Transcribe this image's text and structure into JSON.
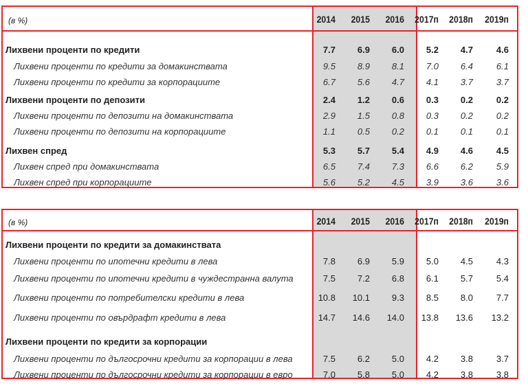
{
  "table1": {
    "unit": "(в %)",
    "years": [
      "2014",
      "2015",
      "2016",
      "2017п",
      "2018п",
      "2019п"
    ],
    "rows": [
      {
        "label": "Лихвени проценти по кредити",
        "style": "bold",
        "values": [
          "7.7",
          "6.9",
          "6.0",
          "5.2",
          "4.7",
          "4.6"
        ]
      },
      {
        "label": "Лихвени проценти по кредити за домакинствата",
        "style": "it",
        "values": [
          "9.5",
          "8.9",
          "8.1",
          "7.0",
          "6.4",
          "6.1"
        ]
      },
      {
        "label": "Лихвени проценти по кредити за корпорациите",
        "style": "it",
        "values": [
          "6.7",
          "5.6",
          "4.7",
          "4.1",
          "3.7",
          "3.7"
        ]
      },
      {
        "label": "Лихвени проценти по депозити",
        "style": "bold",
        "values": [
          "2.4",
          "1.2",
          "0.6",
          "0.3",
          "0.2",
          "0.2"
        ]
      },
      {
        "label": "Лихвени проценти по депозити на домакинствата",
        "style": "it",
        "values": [
          "2.9",
          "1.5",
          "0.8",
          "0.3",
          "0.2",
          "0.2"
        ]
      },
      {
        "label": "Лихвени проценти по депозити на корпорациите",
        "style": "it",
        "values": [
          "1.1",
          "0.5",
          "0.2",
          "0.1",
          "0.1",
          "0.1"
        ]
      },
      {
        "label": "Лихвен спред",
        "style": "bold",
        "values": [
          "5.3",
          "5.7",
          "5.4",
          "4.9",
          "4.6",
          "4.5"
        ]
      },
      {
        "label": "Лихвен спред при домакинствата",
        "style": "it",
        "values": [
          "6.5",
          "7.4",
          "7.3",
          "6.6",
          "6.2",
          "5.9"
        ]
      },
      {
        "label": "Лихвен спред при корпорациите",
        "style": "it",
        "values": [
          "5.6",
          "5.2",
          "4.5",
          "3.9",
          "3.6",
          "3.6"
        ]
      }
    ]
  },
  "table2": {
    "unit": "(в %)",
    "years": [
      "2014",
      "2015",
      "2016",
      "2017п",
      "2018п",
      "2019п"
    ],
    "rows": [
      {
        "label": "Лихвени проценти по кредити за домакинствата",
        "style": "bold",
        "values": []
      },
      {
        "label": "Лихвени проценти по ипотечни кредити в лева",
        "style": "it",
        "values": [
          "7.8",
          "6.9",
          "5.9",
          "5.0",
          "4.5",
          "4.3"
        ]
      },
      {
        "label": "Лихвени проценти по ипотечни кредити в чуждестранна валута",
        "style": "it",
        "values": [
          "7.5",
          "7.2",
          "6.8",
          "6.1",
          "5.7",
          "5.4"
        ]
      },
      {
        "label": "Лихвени проценти по потребителски кредити в лева",
        "style": "it",
        "values": [
          "10.8",
          "10.1",
          "9.3",
          "8.5",
          "8.0",
          "7.7"
        ]
      },
      {
        "label": "Лихвени проценти по овърдрафт кредити в лева",
        "style": "it",
        "values": [
          "14.7",
          "14.6",
          "14.0",
          "13.8",
          "13.6",
          "13.2"
        ]
      },
      {
        "label": "Лихвени проценти по кредити за корпорации",
        "style": "bold",
        "values": []
      },
      {
        "label": "Лихвени проценти по дългосрочни кредити за корпорации в лева",
        "style": "it",
        "values": [
          "7.5",
          "6.2",
          "5.0",
          "4.2",
          "3.8",
          "3.7"
        ]
      },
      {
        "label": "Лихвени проценти по дългосрочни кредити за корпорации в евро",
        "style": "it",
        "values": [
          "7.0",
          "5.8",
          "5.0",
          "4.2",
          "3.8",
          "3.8"
        ]
      }
    ]
  }
}
